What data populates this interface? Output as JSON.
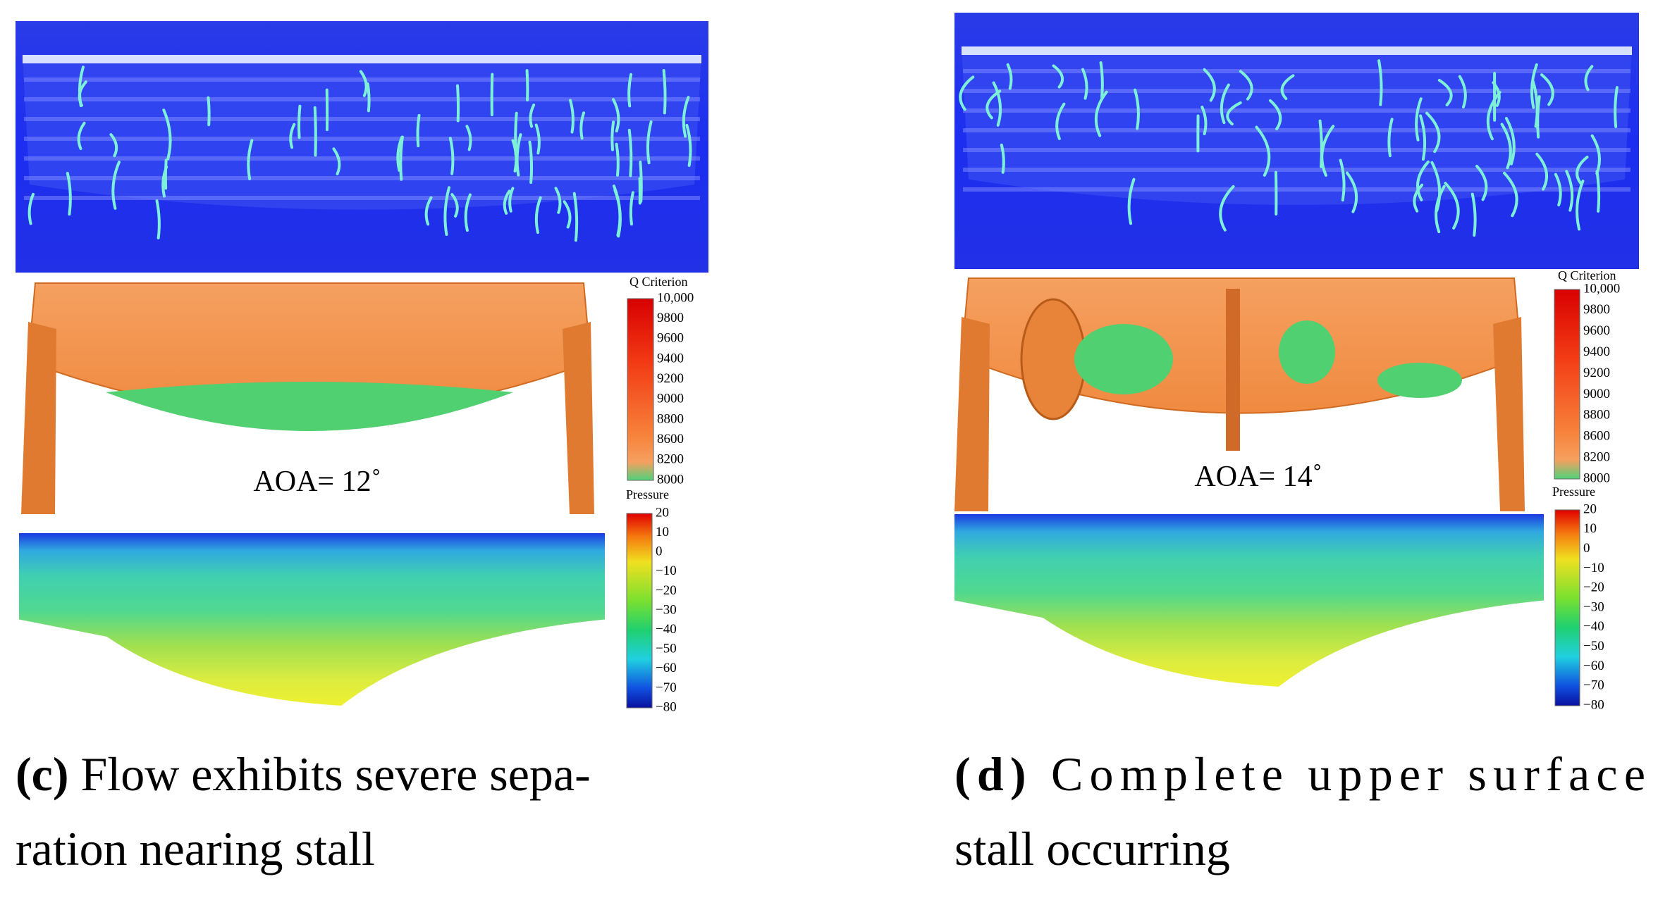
{
  "panels": [
    {
      "label": "(c)",
      "caption_lines": [
        "Flow exhibits severe sepa-",
        "ration nearing stall"
      ],
      "aoa": "AOA= 12˚",
      "q_title": "Q Criterion",
      "q_ticks": [
        "10,000",
        "9800",
        "9600",
        "9400",
        "9200",
        "9000",
        "8800",
        "8600",
        "8200",
        "8000"
      ],
      "p_title": "Pressure",
      "p_ticks": [
        "20",
        "10",
        "0",
        "−10",
        "−20",
        "−30",
        "−40",
        "−50",
        "−60",
        "−70",
        "−80"
      ]
    },
    {
      "label": "(d)",
      "caption_lines": [
        "Complete upper surface",
        "stall occurring"
      ],
      "aoa": "AOA= 14˚",
      "q_title": "Q Criterion",
      "q_ticks": [
        "10,000",
        "9800",
        "9600",
        "9400",
        "9200",
        "9000",
        "8800",
        "8600",
        "8200",
        "8000"
      ],
      "p_title": "Pressure",
      "p_ticks": [
        "20",
        "10",
        "0",
        "−10",
        "−20",
        "−30",
        "−40",
        "−50",
        "−60",
        "−70",
        "−80"
      ]
    }
  ]
}
